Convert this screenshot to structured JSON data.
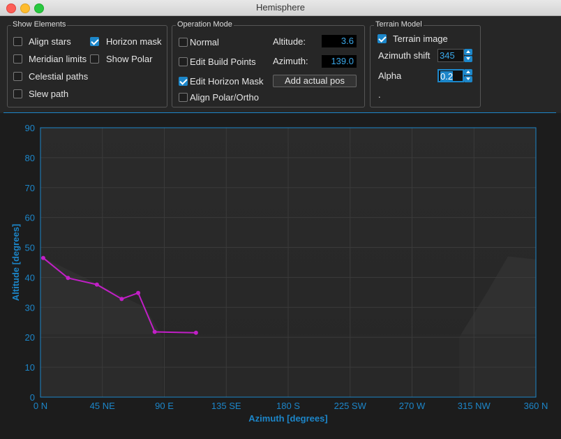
{
  "window": {
    "title": "Hemisphere"
  },
  "show_elements": {
    "title": "Show Elements",
    "align_stars": {
      "label": "Align stars",
      "checked": false
    },
    "horizon_mask": {
      "label": "Horizon mask",
      "checked": true
    },
    "meridian_limits": {
      "label": "Meridian limits",
      "checked": false
    },
    "show_polar": {
      "label": "Show Polar",
      "checked": false
    },
    "celestial_paths": {
      "label": "Celestial paths",
      "checked": false
    },
    "slew_path": {
      "label": "Slew path",
      "checked": false
    }
  },
  "operation_mode": {
    "title": "Operation Mode",
    "normal": {
      "label": "Normal",
      "checked": false
    },
    "edit_build_points": {
      "label": "Edit Build Points",
      "checked": false
    },
    "edit_horizon_mask": {
      "label": "Edit Horizon Mask",
      "checked": true
    },
    "align_polar": {
      "label": "Align Polar/Ortho",
      "checked": false
    },
    "altitude_label": "Altitude:",
    "altitude_value": "3.6",
    "azimuth_label": "Azimuth:",
    "azimuth_value": "139.0",
    "add_actual_pos": "Add actual pos"
  },
  "terrain_model": {
    "title": "Terrain Model",
    "terrain_image": {
      "label": "Terrain image",
      "checked": true
    },
    "azimuth_shift_label": "Azimuth shift",
    "azimuth_shift_value": "345",
    "alpha_label": "Alpha",
    "alpha_value": "0.2",
    "dot": "."
  },
  "colors": {
    "accent": "#1c86c9",
    "mask_line": "#c21fc7",
    "grid": "#3a3a3a"
  },
  "chart_data": {
    "type": "line",
    "xlabel": "Azimuth [degrees]",
    "ylabel": "Altitude [degrees]",
    "xlim": [
      0,
      360
    ],
    "ylim": [
      0,
      90
    ],
    "x_ticks": [
      {
        "value": 0,
        "label": "0 N"
      },
      {
        "value": 45,
        "label": "45 NE"
      },
      {
        "value": 90,
        "label": "90 E"
      },
      {
        "value": 135,
        "label": "135 SE"
      },
      {
        "value": 180,
        "label": "180 S"
      },
      {
        "value": 225,
        "label": "225 SW"
      },
      {
        "value": 270,
        "label": "270 W"
      },
      {
        "value": 315,
        "label": "315 NW"
      },
      {
        "value": 360,
        "label": "360 N"
      }
    ],
    "y_ticks": [
      {
        "value": 0,
        "label": "0"
      },
      {
        "value": 10,
        "label": "10"
      },
      {
        "value": 20,
        "label": "20"
      },
      {
        "value": 30,
        "label": "30"
      },
      {
        "value": 40,
        "label": "40"
      },
      {
        "value": 50,
        "label": "50"
      },
      {
        "value": 60,
        "label": "60"
      },
      {
        "value": 70,
        "label": "70"
      },
      {
        "value": 80,
        "label": "80"
      },
      {
        "value": 90,
        "label": "90"
      }
    ],
    "grid": true,
    "series": [
      {
        "x": [
          2,
          20,
          41,
          59,
          71,
          83,
          113
        ],
        "y": [
          46.5,
          39.8,
          37.6,
          32.8,
          34.8,
          21.8,
          21.5
        ]
      }
    ]
  }
}
